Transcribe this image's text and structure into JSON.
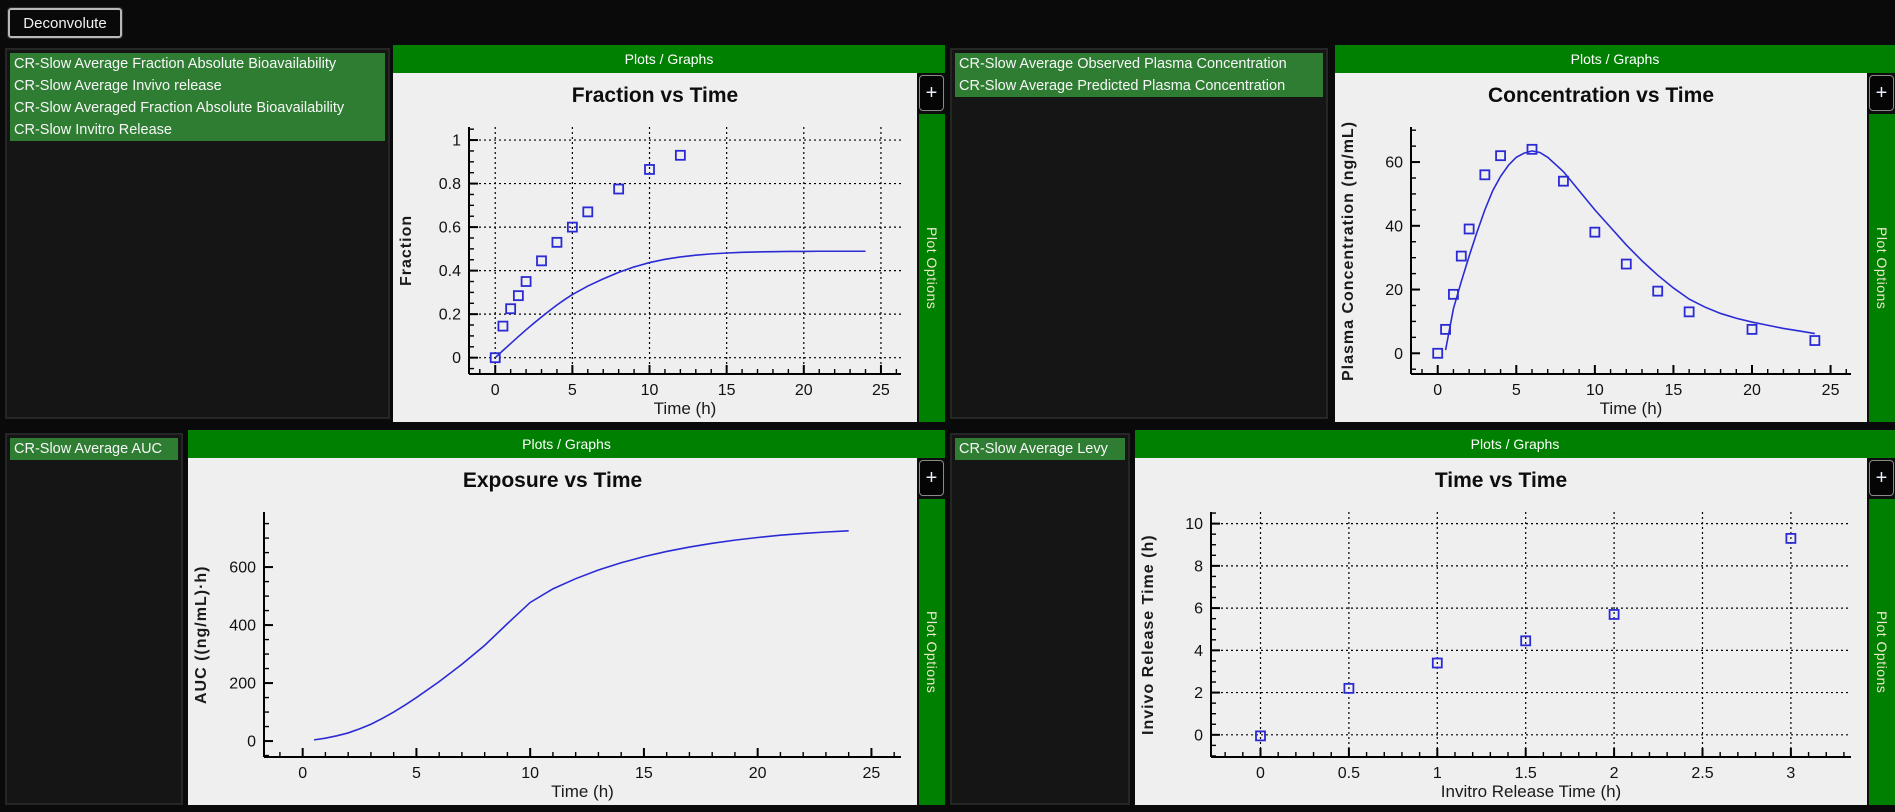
{
  "toolbar": {
    "deconvolute_label": "Deconvolute"
  },
  "panels": {
    "header_label": "Plots / Graphs",
    "plot_options_label": "Plot Options",
    "add_label": "+"
  },
  "lists": {
    "deconvolution_results": {
      "items": [
        "CR-Slow Average Fraction Absolute Bioavailability",
        "CR-Slow Average Invivo release",
        "CR-Slow Averaged Fraction Absolute Bioavailability",
        "CR-Slow Invitro Release"
      ]
    },
    "concentration_results": {
      "items": [
        "CR-Slow Average Observed Plasma Concentration",
        "CR-Slow Average Predicted Plasma Concentration"
      ]
    },
    "auc_results": {
      "items": [
        "CR-Slow Average AUC"
      ]
    },
    "levy_results": {
      "items": [
        "CR-Slow Average Levy"
      ]
    }
  },
  "colors": {
    "header_green": "#008000",
    "list_item_green": "#2e7d32",
    "plot_background": "#efefef",
    "series_blue": "#2b2bd5",
    "page_background": "#0a0a0a",
    "plot_options_text": "#efe8cf"
  },
  "chart_data": [
    {
      "type": "line+scatter",
      "title": "Fraction vs Time",
      "xlabel": "Time (h)",
      "ylabel": "Fraction",
      "xlim": [
        -1.7,
        26.3
      ],
      "ylim": [
        -0.075,
        1.06
      ],
      "xticks": [
        0,
        5,
        10,
        15,
        20,
        25
      ],
      "xtick_labels": [
        "0",
        "5",
        "10",
        "15",
        "20",
        "25"
      ],
      "yticks": [
        0,
        0.2,
        0.4,
        0.6,
        0.8,
        1
      ],
      "ytick_labels": [
        "0",
        "0.2",
        "0.4",
        "0.6",
        "0.8",
        "1"
      ],
      "minor_x": 1,
      "minor_y": 0.05,
      "grid": true,
      "legend": "none",
      "color": "#2b2bd5",
      "series": [
        {
          "name": "fraction-observed-points",
          "type": "scatter",
          "x": [
            0,
            0.5,
            1,
            1.5,
            2,
            3,
            4,
            5,
            6,
            8,
            10,
            12
          ],
          "y": [
            0,
            0.145,
            0.225,
            0.285,
            0.35,
            0.445,
            0.53,
            0.6,
            0.67,
            0.775,
            0.865,
            0.93
          ]
        },
        {
          "name": "fraction-fitted-line",
          "type": "line",
          "x": [
            0,
            0.5,
            1,
            1.5,
            2,
            2.5,
            3,
            3.5,
            4,
            4.5,
            5,
            6,
            7,
            8,
            9,
            10,
            11,
            12,
            13,
            14,
            15,
            16,
            17,
            18,
            19,
            20,
            21,
            22,
            23,
            24
          ],
          "y": [
            0,
            0.033,
            0.065,
            0.097,
            0.128,
            0.158,
            0.187,
            0.215,
            0.242,
            0.267,
            0.29,
            0.329,
            0.362,
            0.392,
            0.417,
            0.437,
            0.452,
            0.463,
            0.471,
            0.477,
            0.481,
            0.484,
            0.486,
            0.487,
            0.488,
            0.488,
            0.489,
            0.489,
            0.489,
            0.489
          ]
        }
      ]
    },
    {
      "type": "line+scatter",
      "title": "Concentration vs Time",
      "xlabel": "Time (h)",
      "ylabel": "Plasma Concentration (ng/mL)",
      "xlim": [
        -1.7,
        26.3
      ],
      "ylim": [
        -6.5,
        71
      ],
      "xticks": [
        0,
        5,
        10,
        15,
        20,
        25
      ],
      "xtick_labels": [
        "0",
        "5",
        "10",
        "15",
        "20",
        "25"
      ],
      "yticks": [
        0,
        20,
        40,
        60
      ],
      "ytick_labels": [
        "0",
        "20",
        "40",
        "60"
      ],
      "minor_x": 1,
      "minor_y": 5,
      "grid": false,
      "legend": "none",
      "color": "#2b2bd5",
      "series": [
        {
          "name": "observed-concentration-points",
          "type": "scatter",
          "x": [
            0,
            0.5,
            1,
            1.5,
            2,
            3,
            4,
            6,
            8,
            10,
            12,
            14,
            16,
            20,
            24
          ],
          "y": [
            0,
            7.5,
            18.5,
            30.5,
            39,
            56,
            62,
            64,
            54,
            38,
            28,
            19.5,
            13,
            7.5,
            4
          ]
        },
        {
          "name": "predicted-concentration-line",
          "type": "line",
          "x": [
            0.5,
            1,
            1.5,
            2,
            2.5,
            3,
            3.5,
            4,
            4.5,
            5,
            5.5,
            6,
            6.5,
            7,
            8,
            9,
            10,
            11,
            12,
            13,
            14,
            15,
            16,
            17,
            18,
            19,
            20,
            21,
            22,
            23,
            24
          ],
          "y": [
            1,
            14,
            22.5,
            30.5,
            38,
            45,
            51,
            55.5,
            59,
            61.5,
            62.8,
            63.5,
            63,
            61.5,
            57,
            51,
            45,
            39.5,
            34,
            29,
            24.5,
            20.5,
            17,
            14.5,
            12.5,
            11,
            9.8,
            8.8,
            7.8,
            7,
            6.2
          ]
        }
      ]
    },
    {
      "type": "line",
      "title": "Exposure vs Time",
      "xlabel": "Time (h)",
      "ylabel": "AUC ((ng/mL)·h)",
      "xlim": [
        -1.7,
        26.3
      ],
      "ylim": [
        -55,
        790
      ],
      "xticks": [
        0,
        5,
        10,
        15,
        20,
        25
      ],
      "xtick_labels": [
        "0",
        "5",
        "10",
        "15",
        "20",
        "25"
      ],
      "yticks": [
        0,
        200,
        400,
        600
      ],
      "ytick_labels": [
        "0",
        "200",
        "400",
        "600"
      ],
      "minor_x": 1,
      "minor_y": 50,
      "grid": false,
      "legend": "none",
      "color": "#2b2bd5",
      "series": [
        {
          "name": "cumulative-auc-line",
          "type": "line",
          "x": [
            0.5,
            1,
            1.5,
            2,
            2.5,
            3,
            3.5,
            4,
            4.5,
            5,
            6,
            7,
            8,
            9,
            10,
            11,
            12,
            13,
            14,
            15,
            16,
            17,
            18,
            19,
            20,
            21,
            22,
            23,
            24
          ],
          "y": [
            4,
            10,
            18,
            28,
            42,
            58,
            78,
            100,
            124,
            150,
            205,
            265,
            330,
            405,
            478,
            525,
            560,
            590,
            615,
            636,
            654,
            669,
            682,
            693,
            702,
            710,
            716,
            721,
            725
          ]
        }
      ]
    },
    {
      "type": "scatter",
      "title": "Time vs Time",
      "xlabel": "Invitro Release Time (h)",
      "ylabel": "Invivo Release Time (h)",
      "xlim": [
        -0.28,
        3.34
      ],
      "ylim": [
        -1.05,
        10.55
      ],
      "xticks": [
        0,
        0.5,
        1,
        1.5,
        2,
        2.5,
        3
      ],
      "xtick_labels": [
        "0",
        "0.5",
        "1",
        "1.5",
        "2",
        "2.5",
        "3"
      ],
      "yticks": [
        0,
        2,
        4,
        6,
        8,
        10
      ],
      "ytick_labels": [
        "0",
        "2",
        "4",
        "6",
        "8",
        "10"
      ],
      "minor_x": 0.1,
      "minor_y": 0.5,
      "grid": true,
      "legend": "none",
      "color": "#2b2bd5",
      "series": [
        {
          "name": "levy-plot-points",
          "type": "scatter",
          "x": [
            0,
            0.5,
            1,
            1.5,
            2,
            3
          ],
          "y": [
            -0.05,
            2.2,
            3.4,
            4.45,
            5.7,
            9.3
          ]
        }
      ]
    }
  ]
}
